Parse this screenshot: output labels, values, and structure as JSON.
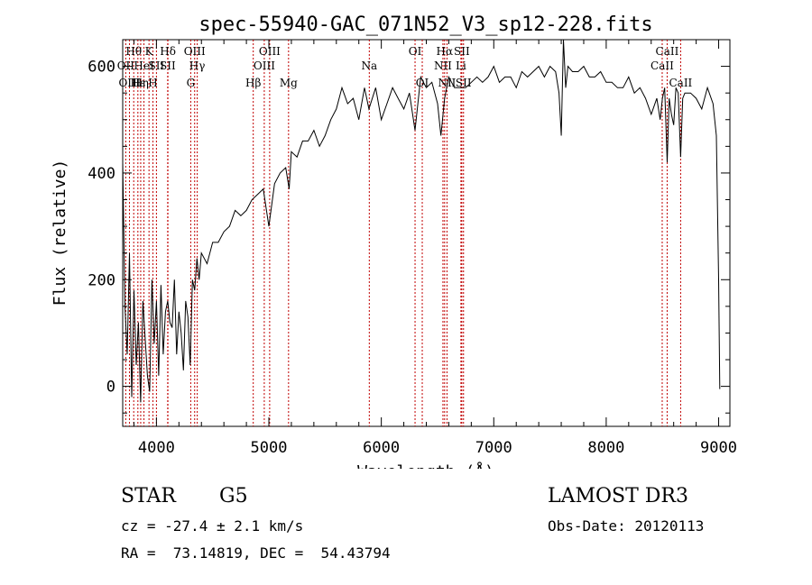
{
  "chart_data": {
    "type": "line",
    "title": "spec-55940-GAC_071N52_V3_sp12-228.fits",
    "xlabel": "Wavelength (Å)",
    "ylabel": "Flux (relative)",
    "xlim": [
      3700,
      9100
    ],
    "ylim": [
      -75,
      650
    ],
    "xticks": [
      4000,
      5000,
      6000,
      7000,
      8000,
      9000
    ],
    "yticks": [
      0,
      200,
      400,
      600
    ],
    "grid": false,
    "spectrum": {
      "x": [
        3700,
        3720,
        3740,
        3760,
        3780,
        3800,
        3820,
        3840,
        3860,
        3880,
        3900,
        3920,
        3940,
        3960,
        3980,
        4000,
        4020,
        4040,
        4060,
        4080,
        4100,
        4120,
        4140,
        4160,
        4180,
        4200,
        4220,
        4240,
        4260,
        4280,
        4300,
        4320,
        4340,
        4360,
        4380,
        4400,
        4450,
        4500,
        4550,
        4600,
        4650,
        4700,
        4750,
        4800,
        4850,
        4900,
        4950,
        5000,
        5050,
        5100,
        5150,
        5180,
        5200,
        5250,
        5300,
        5350,
        5400,
        5450,
        5500,
        5550,
        5600,
        5650,
        5700,
        5750,
        5800,
        5850,
        5890,
        5950,
        6000,
        6050,
        6100,
        6150,
        6200,
        6250,
        6300,
        6350,
        6400,
        6450,
        6500,
        6530,
        6563,
        6600,
        6650,
        6700,
        6750,
        6800,
        6850,
        6900,
        6950,
        7000,
        7050,
        7100,
        7150,
        7200,
        7250,
        7300,
        7350,
        7400,
        7450,
        7500,
        7550,
        7580,
        7600,
        7620,
        7640,
        7660,
        7700,
        7750,
        7800,
        7850,
        7900,
        7950,
        8000,
        8050,
        8100,
        8150,
        8200,
        8250,
        8300,
        8350,
        8400,
        8450,
        8480,
        8500,
        8520,
        8542,
        8560,
        8580,
        8600,
        8620,
        8640,
        8662,
        8680,
        8700,
        8750,
        8800,
        8850,
        8900,
        8950,
        8980,
        9000,
        9010
      ],
      "y": [
        420,
        150,
        60,
        250,
        -20,
        180,
        40,
        120,
        -30,
        160,
        90,
        20,
        -10,
        200,
        80,
        160,
        20,
        190,
        60,
        140,
        160,
        120,
        110,
        200,
        60,
        140,
        100,
        30,
        160,
        130,
        40,
        200,
        180,
        240,
        200,
        250,
        230,
        270,
        270,
        290,
        300,
        330,
        320,
        330,
        350,
        360,
        370,
        300,
        380,
        400,
        410,
        370,
        440,
        430,
        460,
        460,
        480,
        450,
        470,
        500,
        520,
        560,
        530,
        540,
        500,
        560,
        520,
        560,
        500,
        530,
        560,
        540,
        520,
        550,
        480,
        580,
        560,
        570,
        530,
        470,
        540,
        580,
        560,
        560,
        560,
        570,
        580,
        570,
        580,
        600,
        570,
        580,
        580,
        560,
        590,
        580,
        590,
        600,
        580,
        600,
        590,
        550,
        470,
        650,
        560,
        600,
        590,
        590,
        600,
        580,
        580,
        590,
        570,
        570,
        560,
        560,
        580,
        550,
        560,
        540,
        510,
        540,
        500,
        540,
        560,
        420,
        540,
        510,
        490,
        560,
        550,
        430,
        540,
        550,
        550,
        540,
        520,
        560,
        530,
        470,
        200,
        -5
      ]
    },
    "lines": [
      {
        "label": "Hθ",
        "x": 3798,
        "row": 1
      },
      {
        "label": "OII",
        "x": 3727,
        "row": 2
      },
      {
        "label": "OIII",
        "x": 3760,
        "row": 3
      },
      {
        "label": "Hε",
        "x": 3835,
        "row": 3
      },
      {
        "label": "HeI",
        "x": 3889,
        "row": 2
      },
      {
        "label": "Hη",
        "x": 3860,
        "row": 3
      },
      {
        "label": "K",
        "x": 3934,
        "row": 1
      },
      {
        "label": "SII",
        "x": 4000,
        "row": 2
      },
      {
        "label": "H",
        "x": 3969,
        "row": 3
      },
      {
        "label": "Hδ",
        "x": 4102,
        "row": 1
      },
      {
        "label": "SII",
        "x": 4100,
        "row": 2
      },
      {
        "label": "OIII",
        "x": 4340,
        "row": 1
      },
      {
        "label": "Hγ",
        "x": 4363,
        "row": 2
      },
      {
        "label": "G",
        "x": 4305,
        "row": 3
      },
      {
        "label": "Hβ",
        "x": 4861,
        "row": 3
      },
      {
        "label": "OIII",
        "x": 5007,
        "row": 1
      },
      {
        "label": "OIII",
        "x": 4959,
        "row": 2
      },
      {
        "label": "Mg",
        "x": 5175,
        "row": 3
      },
      {
        "label": "Na",
        "x": 5893,
        "row": 2
      },
      {
        "label": "OI",
        "x": 6300,
        "row": 1
      },
      {
        "label": "OI",
        "x": 6364,
        "row": 3
      },
      {
        "label": "Hα",
        "x": 6563,
        "row": 1
      },
      {
        "label": "SII",
        "x": 6716,
        "row": 1
      },
      {
        "label": "NII",
        "x": 6548,
        "row": 2
      },
      {
        "label": "Li",
        "x": 6708,
        "row": 2
      },
      {
        "label": "NII",
        "x": 6584,
        "row": 3
      },
      {
        "label": "SII",
        "x": 6731,
        "row": 3
      },
      {
        "label": "CaII",
        "x": 8542,
        "row": 1
      },
      {
        "label": "CaII",
        "x": 8498,
        "row": 2
      },
      {
        "label": "CaII",
        "x": 8662,
        "row": 3
      }
    ]
  },
  "footer": {
    "class": "STAR",
    "subclass": "G5",
    "survey": "LAMOST DR3",
    "cz": "cz = -27.4 ± 2.1 km/s",
    "obs_date": "Obs-Date: 20120113",
    "coords": "RA =  73.14819, DEC =  54.43794"
  }
}
